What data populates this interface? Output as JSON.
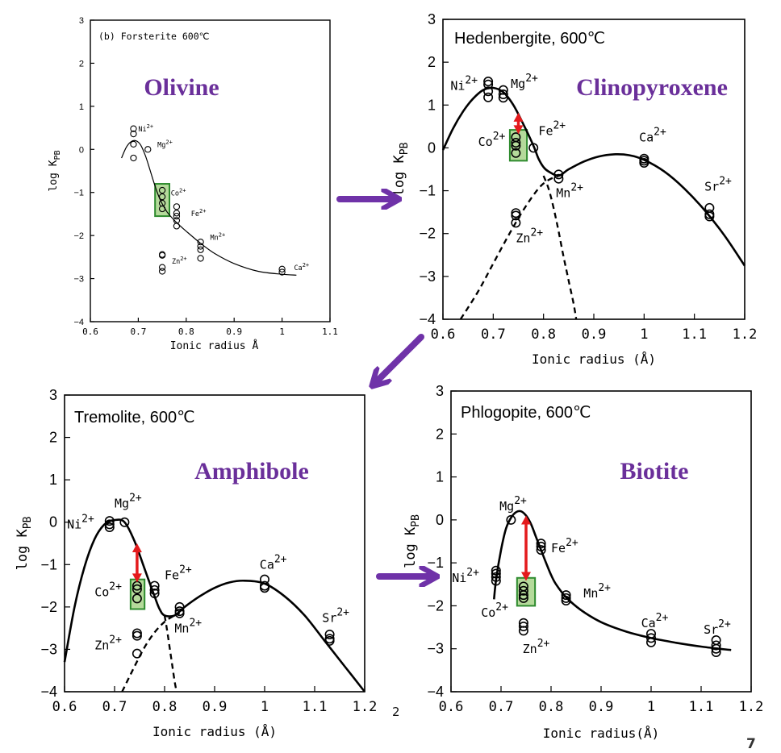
{
  "chart_data": [
    {
      "type": "scatter",
      "panel": "olivine",
      "title": "(b) Forsterite 600℃",
      "mineral_label": "Olivine",
      "xlabel": "Ionic radius   Å",
      "ylabel": "log K",
      "ylabel_sub": "PB",
      "xlim": [
        0.6,
        1.1
      ],
      "ylim": [
        -4,
        3
      ],
      "xticks": [
        "0.6",
        "0.7",
        "0.8",
        "0.9",
        "1",
        "1.1"
      ],
      "xtick_values": [
        0.6,
        0.7,
        0.8,
        0.9,
        1.0,
        1.1
      ],
      "yticks": [
        "3",
        "2",
        "1",
        "0",
        "−1",
        "−2",
        "−3",
        "−4"
      ],
      "ytick_values": [
        3,
        2,
        1,
        0,
        -1,
        -2,
        -3,
        -4
      ],
      "points": [
        {
          "x": 0.69,
          "y": 0.48
        },
        {
          "x": 0.69,
          "y": 0.36
        },
        {
          "x": 0.69,
          "y": 0.12
        },
        {
          "x": 0.69,
          "y": -0.2
        },
        {
          "x": 0.72,
          "y": 0.0
        },
        {
          "x": 0.75,
          "y": -0.95
        },
        {
          "x": 0.75,
          "y": -1.1
        },
        {
          "x": 0.75,
          "y": -1.25
        },
        {
          "x": 0.75,
          "y": -1.38
        },
        {
          "x": 0.78,
          "y": -1.33
        },
        {
          "x": 0.78,
          "y": -1.48
        },
        {
          "x": 0.78,
          "y": -1.55
        },
        {
          "x": 0.78,
          "y": -1.65
        },
        {
          "x": 0.78,
          "y": -1.78
        },
        {
          "x": 0.83,
          "y": -2.15
        },
        {
          "x": 0.83,
          "y": -2.25
        },
        {
          "x": 0.83,
          "y": -2.33
        },
        {
          "x": 0.83,
          "y": -2.53
        },
        {
          "x": 0.75,
          "y": -2.44
        },
        {
          "x": 0.75,
          "y": -2.46
        },
        {
          "x": 0.75,
          "y": -2.74
        },
        {
          "x": 0.75,
          "y": -2.83
        },
        {
          "x": 1.0,
          "y": -2.78
        },
        {
          "x": 1.0,
          "y": -2.85
        }
      ],
      "curves": [
        {
          "style": "solid",
          "x": [
            0.665,
            0.675,
            0.685,
            0.695,
            0.705,
            0.715,
            0.725,
            0.735,
            0.745,
            0.76,
            0.78,
            0.8,
            0.83,
            0.86,
            0.9,
            0.95,
            1.0,
            1.03
          ],
          "y": [
            -0.2,
            0.05,
            0.18,
            0.2,
            0.1,
            -0.15,
            -0.5,
            -0.85,
            -1.15,
            -1.45,
            -1.7,
            -1.9,
            -2.18,
            -2.42,
            -2.65,
            -2.83,
            -2.9,
            -2.92
          ]
        }
      ],
      "ion_labels": [
        {
          "text": "Ni",
          "sup": "2+",
          "x": 0.7,
          "y": 0.42
        },
        {
          "text": "Mg",
          "sup": "2+",
          "x": 0.74,
          "y": 0.05
        },
        {
          "text": "Co",
          "sup": "2+",
          "x": 0.768,
          "y": -1.07
        },
        {
          "text": "Fe",
          "sup": "2+",
          "x": 0.81,
          "y": -1.55
        },
        {
          "text": "Mn",
          "sup": "2+",
          "x": 0.85,
          "y": -2.1
        },
        {
          "text": "Zn",
          "sup": "2+",
          "x": 0.77,
          "y": -2.65
        },
        {
          "text": "Ca",
          "sup": "2+",
          "x": 1.025,
          "y": -2.8
        }
      ],
      "highlight_box": {
        "x0": 0.735,
        "x1": 0.765,
        "y0": -1.55,
        "y1": -0.8
      },
      "red_arrow": null
    },
    {
      "type": "scatter",
      "panel": "clinopyroxene",
      "title": "Hedenbergite, 600℃",
      "mineral_label": "Clinopyroxene",
      "xlabel": "Ionic radius (Å)",
      "ylabel": "log K",
      "ylabel_sub": "PB",
      "xlim": [
        0.6,
        1.2
      ],
      "ylim": [
        -4,
        3
      ],
      "xticks": [
        "0.6",
        "0.7",
        "0.8",
        "0.9",
        "1",
        "1.1",
        "1.2"
      ],
      "xtick_values": [
        0.6,
        0.7,
        0.8,
        0.9,
        1.0,
        1.1,
        1.2
      ],
      "yticks": [
        "3",
        "2",
        "1",
        "0",
        "−1",
        "−2",
        "−3",
        "−4"
      ],
      "ytick_values": [
        3,
        2,
        1,
        0,
        -1,
        -2,
        -3,
        -4
      ],
      "points": [
        {
          "x": 0.69,
          "y": 1.55
        },
        {
          "x": 0.69,
          "y": 1.48
        },
        {
          "x": 0.69,
          "y": 1.32
        },
        {
          "x": 0.69,
          "y": 1.18
        },
        {
          "x": 0.72,
          "y": 1.35
        },
        {
          "x": 0.72,
          "y": 1.25
        },
        {
          "x": 0.72,
          "y": 1.17
        },
        {
          "x": 0.745,
          "y": 0.25
        },
        {
          "x": 0.745,
          "y": 0.12
        },
        {
          "x": 0.745,
          "y": 0.05
        },
        {
          "x": 0.745,
          "y": -0.12
        },
        {
          "x": 0.78,
          "y": 0.0
        },
        {
          "x": 0.83,
          "y": -0.62
        },
        {
          "x": 0.83,
          "y": -0.72
        },
        {
          "x": 0.745,
          "y": -1.52
        },
        {
          "x": 0.745,
          "y": -1.58
        },
        {
          "x": 0.745,
          "y": -1.75
        },
        {
          "x": 1.0,
          "y": -0.25
        },
        {
          "x": 1.0,
          "y": -0.3
        },
        {
          "x": 1.0,
          "y": -0.35
        },
        {
          "x": 1.13,
          "y": -1.4
        },
        {
          "x": 1.13,
          "y": -1.55
        },
        {
          "x": 1.13,
          "y": -1.6
        }
      ],
      "curves": [
        {
          "style": "solid",
          "x": [
            0.6,
            0.62,
            0.64,
            0.66,
            0.68,
            0.7,
            0.72,
            0.74,
            0.76,
            0.78,
            0.79,
            0.8,
            0.81,
            0.83,
            0.85,
            0.88,
            0.91,
            0.94,
            0.97,
            1.0,
            1.04,
            1.08,
            1.12,
            1.16,
            1.2
          ],
          "y": [
            -0.05,
            0.45,
            0.85,
            1.15,
            1.35,
            1.4,
            1.3,
            1.0,
            0.55,
            0.05,
            -0.25,
            -0.45,
            -0.55,
            -0.65,
            -0.5,
            -0.32,
            -0.2,
            -0.15,
            -0.17,
            -0.28,
            -0.55,
            -0.95,
            -1.45,
            -2.05,
            -2.75
          ]
        },
        {
          "style": "dashed",
          "x": [
            0.635,
            0.67,
            0.7,
            0.73,
            0.76,
            0.79,
            0.81,
            0.83
          ],
          "y": [
            -4.0,
            -3.35,
            -2.7,
            -2.05,
            -1.45,
            -0.95,
            -0.75,
            -0.65
          ]
        },
        {
          "style": "dashed",
          "x": [
            0.8,
            0.81,
            0.82,
            0.83,
            0.84,
            0.85,
            0.86,
            0.865
          ],
          "y": [
            -0.65,
            -0.95,
            -1.4,
            -1.95,
            -2.55,
            -3.1,
            -3.65,
            -4.0
          ]
        }
      ],
      "ion_labels": [
        {
          "text": "Ni",
          "sup": "2+",
          "x": 0.615,
          "y": 1.35
        },
        {
          "text": "Mg",
          "sup": "2+",
          "x": 0.735,
          "y": 1.4
        },
        {
          "text": "Co",
          "sup": "2+",
          "x": 0.67,
          "y": 0.05
        },
        {
          "text": "Fe",
          "sup": "2+",
          "x": 0.79,
          "y": 0.3
        },
        {
          "text": "Mn",
          "sup": "2+",
          "x": 0.825,
          "y": -1.15
        },
        {
          "text": "Zn",
          "sup": "2+",
          "x": 0.745,
          "y": -2.2
        },
        {
          "text": "Ca",
          "sup": "2+",
          "x": 0.99,
          "y": 0.15
        },
        {
          "text": "Sr",
          "sup": "2+",
          "x": 1.12,
          "y": -1.0
        }
      ],
      "highlight_box": {
        "x0": 0.733,
        "x1": 0.767,
        "y0": -0.3,
        "y1": 0.42
      },
      "red_arrow": {
        "x": 0.75,
        "y_top": 0.82,
        "y_bottom": 0.32
      }
    },
    {
      "type": "scatter",
      "panel": "amphibole",
      "title": "Tremolite, 600℃",
      "mineral_label": "Amphibole",
      "xlabel": "Ionic radius (Å)",
      "ylabel": "log K",
      "ylabel_sub": "PB",
      "xlim": [
        0.6,
        1.2
      ],
      "ylim": [
        -4,
        3
      ],
      "xticks": [
        "0.6",
        "0.7",
        "0.8",
        "0.9",
        "1",
        "1.1",
        "1.2"
      ],
      "xtick_values": [
        0.6,
        0.7,
        0.8,
        0.9,
        1.0,
        1.1,
        1.2
      ],
      "yticks": [
        "3",
        "2",
        "1",
        "0",
        "−1",
        "−2",
        "−3",
        "−4"
      ],
      "ytick_values": [
        3,
        2,
        1,
        0,
        -1,
        -2,
        -3,
        -4
      ],
      "points": [
        {
          "x": 0.69,
          "y": 0.03
        },
        {
          "x": 0.69,
          "y": -0.05
        },
        {
          "x": 0.69,
          "y": -0.12
        },
        {
          "x": 0.72,
          "y": 0.0
        },
        {
          "x": 0.745,
          "y": -1.5
        },
        {
          "x": 0.745,
          "y": -1.58
        },
        {
          "x": 0.745,
          "y": -1.8
        },
        {
          "x": 0.78,
          "y": -1.5
        },
        {
          "x": 0.78,
          "y": -1.6
        },
        {
          "x": 0.78,
          "y": -1.68
        },
        {
          "x": 0.83,
          "y": -2.0
        },
        {
          "x": 0.83,
          "y": -2.1
        },
        {
          "x": 0.83,
          "y": -2.15
        },
        {
          "x": 0.745,
          "y": -2.62
        },
        {
          "x": 0.745,
          "y": -2.68
        },
        {
          "x": 0.745,
          "y": -3.1
        },
        {
          "x": 1.0,
          "y": -1.35
        },
        {
          "x": 1.0,
          "y": -1.5
        },
        {
          "x": 1.0,
          "y": -1.55
        },
        {
          "x": 1.13,
          "y": -2.65
        },
        {
          "x": 1.13,
          "y": -2.75
        },
        {
          "x": 1.13,
          "y": -2.8
        }
      ],
      "curves": [
        {
          "style": "solid",
          "x": [
            0.6,
            0.62,
            0.64,
            0.66,
            0.68,
            0.7,
            0.72,
            0.74,
            0.76,
            0.78,
            0.79,
            0.8,
            0.82,
            0.84,
            0.87,
            0.9,
            0.93,
            0.96,
            1.0,
            1.04,
            1.08,
            1.12,
            1.16,
            1.2
          ],
          "y": [
            -3.3,
            -2.0,
            -1.05,
            -0.4,
            -0.05,
            0.05,
            0.0,
            -0.45,
            -1.1,
            -1.75,
            -2.05,
            -2.2,
            -2.2,
            -2.0,
            -1.75,
            -1.55,
            -1.42,
            -1.38,
            -1.45,
            -1.75,
            -2.2,
            -2.8,
            -3.4,
            -4.0
          ]
        },
        {
          "style": "dashed",
          "x": [
            0.715,
            0.74,
            0.76,
            0.78,
            0.8,
            0.82,
            0.83
          ],
          "y": [
            -4.0,
            -3.4,
            -2.95,
            -2.6,
            -2.35,
            -2.2,
            -2.15
          ]
        },
        {
          "style": "dashed",
          "x": [
            0.8,
            0.805,
            0.81,
            0.815,
            0.82,
            0.824
          ],
          "y": [
            -2.2,
            -2.55,
            -2.95,
            -3.35,
            -3.75,
            -4.0
          ]
        }
      ],
      "ion_labels": [
        {
          "text": "Ni",
          "sup": "2+",
          "x": 0.605,
          "y": -0.15
        },
        {
          "text": "Mg",
          "sup": "2+",
          "x": 0.7,
          "y": 0.35
        },
        {
          "text": "Co",
          "sup": "2+",
          "x": 0.66,
          "y": -1.75
        },
        {
          "text": "Fe",
          "sup": "2+",
          "x": 0.8,
          "y": -1.35
        },
        {
          "text": "Mn",
          "sup": "2+",
          "x": 0.82,
          "y": -2.6
        },
        {
          "text": "Zn",
          "sup": "2+",
          "x": 0.66,
          "y": -3.0
        },
        {
          "text": "Ca",
          "sup": "2+",
          "x": 0.99,
          "y": -1.1
        },
        {
          "text": "Sr",
          "sup": "2+",
          "x": 1.115,
          "y": -2.35
        }
      ],
      "highlight_box": {
        "x0": 0.732,
        "x1": 0.76,
        "y0": -2.05,
        "y1": -1.35
      },
      "red_arrow": {
        "x": 0.745,
        "y_top": -0.5,
        "y_bottom": -1.42
      }
    },
    {
      "type": "scatter",
      "panel": "biotite",
      "title": "Phlogopite, 600℃",
      "mineral_label": "Biotite",
      "xlabel": "Ionic radius(Å)",
      "ylabel": "log K",
      "ylabel_sub": "PB",
      "xlim": [
        0.6,
        1.2
      ],
      "ylim": [
        -4,
        3
      ],
      "xticks": [
        "0.6",
        "0.7",
        "0.8",
        "0.9",
        "1",
        "1.1",
        "1.2"
      ],
      "xtick_values": [
        0.6,
        0.7,
        0.8,
        0.9,
        1.0,
        1.1,
        1.2
      ],
      "yticks": [
        "3",
        "2",
        "1",
        "0",
        "−1",
        "−2",
        "−3",
        "−4"
      ],
      "ytick_values": [
        3,
        2,
        1,
        0,
        -1,
        -2,
        -3,
        -4
      ],
      "points": [
        {
          "x": 0.69,
          "y": -1.18
        },
        {
          "x": 0.69,
          "y": -1.25
        },
        {
          "x": 0.69,
          "y": -1.33
        },
        {
          "x": 0.69,
          "y": -1.42
        },
        {
          "x": 0.72,
          "y": 0.0
        },
        {
          "x": 0.745,
          "y": -1.55
        },
        {
          "x": 0.745,
          "y": -1.65
        },
        {
          "x": 0.745,
          "y": -1.75
        },
        {
          "x": 0.745,
          "y": -1.82
        },
        {
          "x": 0.78,
          "y": -0.55
        },
        {
          "x": 0.78,
          "y": -0.62
        },
        {
          "x": 0.78,
          "y": -0.7
        },
        {
          "x": 0.83,
          "y": -1.75
        },
        {
          "x": 0.83,
          "y": -1.82
        },
        {
          "x": 0.83,
          "y": -1.88
        },
        {
          "x": 0.745,
          "y": -2.4
        },
        {
          "x": 0.745,
          "y": -2.48
        },
        {
          "x": 0.745,
          "y": -2.58
        },
        {
          "x": 1.0,
          "y": -2.65
        },
        {
          "x": 1.0,
          "y": -2.75
        },
        {
          "x": 1.0,
          "y": -2.85
        },
        {
          "x": 1.13,
          "y": -2.8
        },
        {
          "x": 1.13,
          "y": -2.92
        },
        {
          "x": 1.13,
          "y": -3.0
        },
        {
          "x": 1.13,
          "y": -3.08
        }
      ],
      "curves": [
        {
          "style": "solid",
          "x": [
            0.686,
            0.69,
            0.7,
            0.71,
            0.72,
            0.73,
            0.74,
            0.75,
            0.76,
            0.77,
            0.78,
            0.79,
            0.8,
            0.81,
            0.83,
            0.86,
            0.9,
            0.95,
            1.0,
            1.05,
            1.1,
            1.16
          ],
          "y": [
            -1.85,
            -1.4,
            -0.7,
            -0.2,
            0.05,
            0.18,
            0.2,
            0.1,
            -0.1,
            -0.4,
            -0.7,
            -1.0,
            -1.28,
            -1.5,
            -1.8,
            -2.1,
            -2.38,
            -2.6,
            -2.75,
            -2.86,
            -2.95,
            -3.03
          ]
        }
      ],
      "ion_labels": [
        {
          "text": "Ni",
          "sup": "2+",
          "x": 0.602,
          "y": -1.45
        },
        {
          "text": "Mg",
          "sup": "2+",
          "x": 0.697,
          "y": 0.22
        },
        {
          "text": "Co",
          "sup": "2+",
          "x": 0.66,
          "y": -2.25
        },
        {
          "text": "Fe",
          "sup": "2+",
          "x": 0.8,
          "y": -0.75
        },
        {
          "text": "Mn",
          "sup": "2+",
          "x": 0.865,
          "y": -1.8
        },
        {
          "text": "Zn",
          "sup": "2+",
          "x": 0.743,
          "y": -3.1
        },
        {
          "text": "Ca",
          "sup": "2+",
          "x": 0.98,
          "y": -2.5
        },
        {
          "text": "Sr",
          "sup": "2+",
          "x": 1.105,
          "y": -2.65
        }
      ],
      "highlight_box": {
        "x0": 0.732,
        "x1": 0.768,
        "y0": -2.0,
        "y1": -1.35
      },
      "red_arrow": {
        "x": 0.75,
        "y_top": 0.1,
        "y_bottom": -1.42
      }
    }
  ],
  "annotations": {
    "stray_number": "2",
    "slide_number": "7"
  },
  "colors": {
    "mineral_label": "#6a2f9a",
    "flow_arrow": "#6f32a8",
    "highlight_fill": "#a8d48a",
    "highlight_stroke": "#2e8b2e",
    "red_arrow": "#e41a1c",
    "ink": "#000000"
  }
}
